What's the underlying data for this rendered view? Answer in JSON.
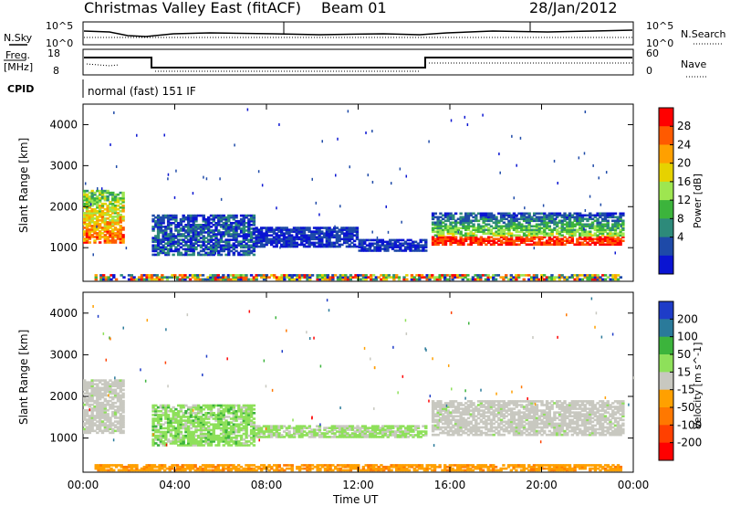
{
  "header": {
    "title": "Christmas Valley East (fitACF)",
    "beam": "Beam 01",
    "date": "28/Jan/2012"
  },
  "status_panels": {
    "nsky_label": "N.Sky",
    "nsearch_label": "N.Search",
    "freq_label_1": "Freq.",
    "freq_label_2": "[MHz]",
    "nave_label": "Nave",
    "cpid_label": "CPID",
    "cpid_text": "normal (fast) 151 IF",
    "noise_ticks_left": [
      "10^5",
      "10^0"
    ],
    "noise_ticks_right": [
      "10^5",
      "10^0"
    ],
    "freq_ticks": [
      "18",
      "8"
    ],
    "nave_ticks": [
      "60",
      "0"
    ]
  },
  "power_colorbar": {
    "title": "Power [dB]",
    "ticks": [
      "28",
      "24",
      "20",
      "16",
      "12",
      "8",
      "4"
    ],
    "colors": [
      "#ff0000",
      "#ff5a00",
      "#ffa000",
      "#e6d200",
      "#9ee650",
      "#3cb43c",
      "#2d8a7a",
      "#1e4aa8",
      "#0a14d2"
    ]
  },
  "velocity_colorbar": {
    "title": "Velocity [m s^-1]",
    "ticks": [
      "200",
      "100",
      "50",
      "15",
      "-15",
      "-50",
      "-100",
      "-200"
    ],
    "colors": [
      "#1e3cc8",
      "#2a7a9a",
      "#3cb43c",
      "#8ee05a",
      "#c8c8c0",
      "#ffa000",
      "#ff7800",
      "#ff4000",
      "#ff0000"
    ]
  },
  "chart_data": [
    {
      "type": "heatmap",
      "name": "power",
      "ylabel": "Slant Range [km]",
      "xlabel": "Time UT",
      "yticks": [
        1000,
        2000,
        3000,
        4000
      ],
      "ylim": [
        180,
        4500
      ],
      "xlim": [
        0,
        24
      ],
      "xticks": [
        "00:00",
        "04:00",
        "08:00",
        "12:00",
        "16:00",
        "20:00",
        "00:00"
      ],
      "regions": [
        {
          "t0": 0.0,
          "t1": 1.8,
          "r0": 1100,
          "r1": 2400,
          "class": "strong-left"
        },
        {
          "t0": 3.0,
          "t1": 7.5,
          "r0": 800,
          "r1": 1800,
          "class": "medium"
        },
        {
          "t0": 7.5,
          "t1": 12.0,
          "r0": 1000,
          "r1": 1500,
          "class": "weak"
        },
        {
          "t0": 12.0,
          "t1": 15.0,
          "r0": 900,
          "r1": 1200,
          "class": "weak"
        },
        {
          "t0": 15.2,
          "t1": 23.6,
          "r0": 1050,
          "r1": 1850,
          "class": "strong-band"
        },
        {
          "t0": 0.5,
          "t1": 23.5,
          "r0": 200,
          "r1": 350,
          "class": "near-range"
        }
      ]
    },
    {
      "type": "heatmap",
      "name": "velocity",
      "ylabel": "Slant Range [km]",
      "xlabel": "Time UT",
      "yticks": [
        1000,
        2000,
        3000,
        4000
      ],
      "ylim": [
        180,
        4500
      ],
      "xlim": [
        0,
        24
      ],
      "xticks": [
        "00:00",
        "04:00",
        "08:00",
        "12:00",
        "16:00",
        "20:00",
        "00:00"
      ],
      "regions": [
        {
          "t0": 0.0,
          "t1": 1.8,
          "r0": 1100,
          "r1": 2400,
          "class": "ground"
        },
        {
          "t0": 3.0,
          "t1": 7.5,
          "r0": 800,
          "r1": 1800,
          "class": "green"
        },
        {
          "t0": 7.5,
          "t1": 15.0,
          "r0": 1000,
          "r1": 1300,
          "class": "green-weak"
        },
        {
          "t0": 15.2,
          "t1": 23.6,
          "r0": 1050,
          "r1": 1900,
          "class": "ground"
        },
        {
          "t0": 0.5,
          "t1": 23.5,
          "r0": 200,
          "r1": 360,
          "class": "near-orange"
        }
      ]
    }
  ]
}
